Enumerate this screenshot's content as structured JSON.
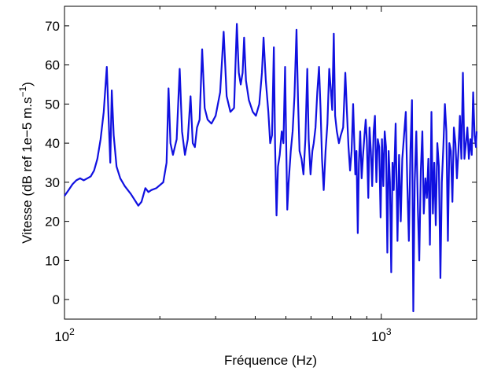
{
  "chart_data": {
    "type": "line",
    "xlabel": "Fréquence (Hz)",
    "ylabel": "Vitesse (dB ref 1e−5 m.s",
    "ylabel_sup": "−1",
    "ylabel_close": ")",
    "xscale": "log",
    "xlim": [
      100,
      2000
    ],
    "ylim": [
      -5,
      75
    ],
    "grid": false,
    "line_color": "#1010e0",
    "x_ticks": [
      {
        "value": 100,
        "base": "10",
        "exp": "2"
      },
      {
        "value": 1000,
        "base": "10",
        "exp": "3"
      }
    ],
    "y_ticks": [
      0,
      10,
      20,
      30,
      40,
      50,
      60,
      70
    ],
    "series": [
      {
        "values": [
          [
            100,
            26.5
          ],
          [
            103,
            28
          ],
          [
            106,
            29.5
          ],
          [
            109,
            30.5
          ],
          [
            112,
            31
          ],
          [
            115,
            30.5
          ],
          [
            118,
            31
          ],
          [
            121,
            31.5
          ],
          [
            124,
            33
          ],
          [
            127,
            36
          ],
          [
            130,
            41
          ],
          [
            133,
            48
          ],
          [
            136,
            59.5
          ],
          [
            138,
            45
          ],
          [
            139.5,
            35
          ],
          [
            141,
            53.5
          ],
          [
            143,
            42
          ],
          [
            146,
            34
          ],
          [
            150,
            31
          ],
          [
            155,
            29
          ],
          [
            162,
            27
          ],
          [
            168,
            25
          ],
          [
            171,
            24
          ],
          [
            175,
            25
          ],
          [
            180,
            28.5
          ],
          [
            184,
            27.5
          ],
          [
            188,
            28
          ],
          [
            195,
            28.5
          ],
          [
            205,
            30
          ],
          [
            210,
            35
          ],
          [
            213,
            54
          ],
          [
            216,
            40
          ],
          [
            220,
            37
          ],
          [
            226,
            41
          ],
          [
            231,
            59
          ],
          [
            235,
            43
          ],
          [
            240,
            37
          ],
          [
            245,
            41
          ],
          [
            250,
            52
          ],
          [
            254,
            40
          ],
          [
            258,
            39
          ],
          [
            262,
            44
          ],
          [
            267,
            46
          ],
          [
            272,
            64
          ],
          [
            277,
            49
          ],
          [
            283,
            46
          ],
          [
            291,
            45
          ],
          [
            300,
            47
          ],
          [
            310,
            53
          ],
          [
            318,
            68.5
          ],
          [
            325,
            52
          ],
          [
            334,
            48
          ],
          [
            343,
            49
          ],
          [
            350,
            70.5
          ],
          [
            355,
            58
          ],
          [
            360,
            55
          ],
          [
            365,
            58
          ],
          [
            369,
            67
          ],
          [
            374,
            56
          ],
          [
            382,
            51
          ],
          [
            393,
            48
          ],
          [
            402,
            47
          ],
          [
            412,
            50
          ],
          [
            420,
            58
          ],
          [
            425,
            67
          ],
          [
            432,
            56
          ],
          [
            440,
            48
          ],
          [
            446,
            40
          ],
          [
            452,
            42
          ],
          [
            458,
            64.5
          ],
          [
            462,
            40
          ],
          [
            467,
            21.5
          ],
          [
            472,
            34
          ],
          [
            478,
            37
          ],
          [
            485,
            43
          ],
          [
            491,
            40
          ],
          [
            497,
            59.5
          ],
          [
            501,
            40
          ],
          [
            505,
            23
          ],
          [
            510,
            30
          ],
          [
            518,
            38
          ],
          [
            525,
            43
          ],
          [
            532,
            52
          ],
          [
            540,
            69
          ],
          [
            546,
            51
          ],
          [
            552,
            38
          ],
          [
            560,
            36
          ],
          [
            568,
            32
          ],
          [
            576,
            41
          ],
          [
            584,
            59
          ],
          [
            590,
            41
          ],
          [
            598,
            32
          ],
          [
            606,
            38
          ],
          [
            612,
            40
          ],
          [
            620,
            44
          ],
          [
            628,
            53
          ],
          [
            636,
            59.5
          ],
          [
            643,
            49
          ],
          [
            650,
            36
          ],
          [
            658,
            28
          ],
          [
            667,
            38
          ],
          [
            676,
            45
          ],
          [
            685,
            59
          ],
          [
            694,
            53
          ],
          [
            700,
            48.5
          ],
          [
            708,
            68
          ],
          [
            715,
            47
          ],
          [
            724,
            43
          ],
          [
            735,
            40
          ],
          [
            745,
            42
          ],
          [
            758,
            44
          ],
          [
            770,
            58
          ],
          [
            779,
            48
          ],
          [
            788,
            39
          ],
          [
            797,
            33
          ],
          [
            806,
            38
          ],
          [
            815,
            50
          ],
          [
            822,
            40
          ],
          [
            828,
            32
          ],
          [
            835,
            38
          ],
          [
            843,
            17
          ],
          [
            850,
            35
          ],
          [
            858,
            43
          ],
          [
            867,
            31
          ],
          [
            876,
            37
          ],
          [
            885,
            42
          ],
          [
            893,
            46
          ],
          [
            900,
            41
          ],
          [
            910,
            26
          ],
          [
            918,
            44
          ],
          [
            927,
            38
          ],
          [
            936,
            29
          ],
          [
            946,
            43
          ],
          [
            955,
            47
          ],
          [
            965,
            30
          ],
          [
            975,
            41
          ],
          [
            985,
            39
          ],
          [
            995,
            21
          ],
          [
            1005,
            41
          ],
          [
            1015,
            29
          ],
          [
            1025,
            43
          ],
          [
            1035,
            39
          ],
          [
            1045,
            12
          ],
          [
            1055,
            38
          ],
          [
            1065,
            30
          ],
          [
            1075,
            7
          ],
          [
            1085,
            35
          ],
          [
            1095,
            28
          ],
          [
            1110,
            45
          ],
          [
            1125,
            15
          ],
          [
            1138,
            37
          ],
          [
            1152,
            20
          ],
          [
            1165,
            36
          ],
          [
            1180,
            42
          ],
          [
            1195,
            48
          ],
          [
            1208,
            30
          ],
          [
            1222,
            15
          ],
          [
            1236,
            38
          ],
          [
            1250,
            51
          ],
          [
            1262,
            -3
          ],
          [
            1275,
            30
          ],
          [
            1290,
            43
          ],
          [
            1305,
            23
          ],
          [
            1318,
            10
          ],
          [
            1333,
            33
          ],
          [
            1348,
            43
          ],
          [
            1362,
            22
          ],
          [
            1378,
            31
          ],
          [
            1393,
            26
          ],
          [
            1408,
            36
          ],
          [
            1424,
            14
          ],
          [
            1440,
            48
          ],
          [
            1455,
            22
          ],
          [
            1470,
            35
          ],
          [
            1486,
            19
          ],
          [
            1503,
            40
          ],
          [
            1520,
            34
          ],
          [
            1537,
            5.5
          ],
          [
            1553,
            30
          ],
          [
            1570,
            39
          ],
          [
            1588,
            50
          ],
          [
            1605,
            43
          ],
          [
            1623,
            15
          ],
          [
            1640,
            40
          ],
          [
            1658,
            38
          ],
          [
            1677,
            25
          ],
          [
            1695,
            44
          ],
          [
            1714,
            40
          ],
          [
            1733,
            31
          ],
          [
            1752,
            38
          ],
          [
            1771,
            47
          ],
          [
            1790,
            36
          ],
          [
            1810,
            58
          ],
          [
            1830,
            36
          ],
          [
            1850,
            40
          ],
          [
            1870,
            44
          ],
          [
            1890,
            36
          ],
          [
            1910,
            41
          ],
          [
            1930,
            37
          ],
          [
            1950,
            53
          ],
          [
            1970,
            42
          ],
          [
            1990,
            39
          ],
          [
            2000,
            43
          ]
        ]
      }
    ]
  }
}
